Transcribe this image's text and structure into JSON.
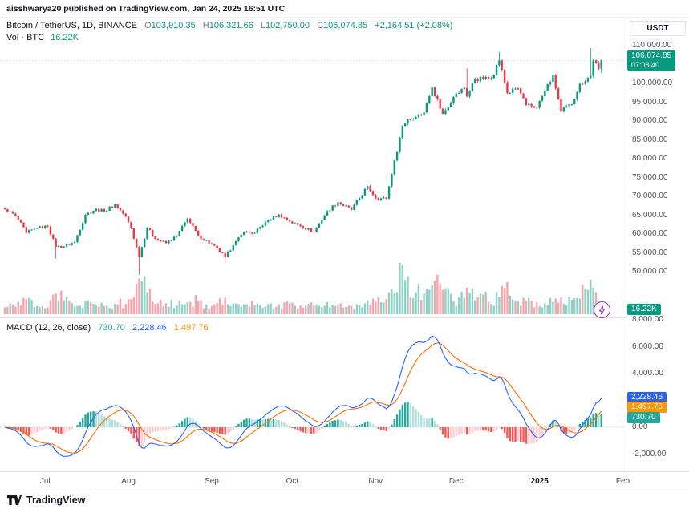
{
  "attribution": "aisshwarya20 published on TradingView.com, Jan 24, 2025 16:51 UTC",
  "legend": {
    "symbol": "Bitcoin / TetherUS, 1D, BINANCE",
    "o_key": "O",
    "o_val": "103,910.35",
    "h_key": "H",
    "h_val": "106,321.66",
    "l_key": "L",
    "l_val": "102,750.00",
    "c_key": "C",
    "c_val": "106,074.85",
    "change": "+2,164.51 (+2.08%)",
    "vol_label": "Vol · BTC",
    "vol_value": "16.22K"
  },
  "macd_legend": {
    "title": "MACD (12, 26, close)",
    "hist": "730.70",
    "macd": "2,228.46",
    "signal": "1,497.76"
  },
  "axis": {
    "currency_button": "USDT",
    "price_labels": [
      {
        "text": "110,000.00",
        "value": 110000
      },
      {
        "text": "100,000.00",
        "value": 100000
      },
      {
        "text": "95,000.00",
        "value": 95000
      },
      {
        "text": "90,000.00",
        "value": 90000
      },
      {
        "text": "85,000.00",
        "value": 85000
      },
      {
        "text": "80,000.00",
        "value": 80000
      },
      {
        "text": "75,000.00",
        "value": 75000
      },
      {
        "text": "70,000.00",
        "value": 70000
      },
      {
        "text": "65,000.00",
        "value": 65000
      },
      {
        "text": "60,000.00",
        "value": 60000
      },
      {
        "text": "55,000.00",
        "value": 55000
      },
      {
        "text": "50,000.00",
        "value": 50000
      }
    ],
    "price_tag": {
      "text": "106,074.85",
      "countdown": "07:08:40",
      "value": 106074.85,
      "color": "#089981",
      "countdown_bg": "#067a67"
    },
    "volume_tag": {
      "text": "16.22K",
      "color": "#089981"
    },
    "macd_labels": [
      {
        "text": "8,000.00",
        "value": 8000
      },
      {
        "text": "6,000.00",
        "value": 6000
      },
      {
        "text": "4,000.00",
        "value": 4000
      },
      {
        "text": "0.00",
        "value": 0
      },
      {
        "text": "-2,000.00",
        "value": -2000
      }
    ],
    "macd_tags": [
      {
        "text": "2,228.46",
        "value": 2228.46,
        "color": "#2962FF"
      },
      {
        "text": "1,497.76",
        "value": 1497.76,
        "color": "#FF9800"
      },
      {
        "text": "730.70",
        "value": 730.7,
        "color": "#26A69A"
      }
    ],
    "time_labels": [
      {
        "text": "Jul",
        "i": 15,
        "bold": false
      },
      {
        "text": "Aug",
        "i": 46,
        "bold": false
      },
      {
        "text": "Sep",
        "i": 77,
        "bold": false
      },
      {
        "text": "Oct",
        "i": 107,
        "bold": false
      },
      {
        "text": "Nov",
        "i": 138,
        "bold": false
      },
      {
        "text": "Dec",
        "i": 168,
        "bold": false
      },
      {
        "text": "2025",
        "i": 199,
        "bold": true
      },
      {
        "text": "Feb",
        "i": 230,
        "bold": false
      }
    ]
  },
  "footer": {
    "brand": "TradingView"
  },
  "icons": {
    "logo": "tradingview-logo",
    "boost": "lightning-bolt-icon"
  },
  "colors": {
    "up": "#089981",
    "down": "#F23645",
    "vol_up": "rgba(8,153,129,0.45)",
    "vol_down": "rgba(242,54,69,0.45)",
    "macd_line": "#2962FF",
    "signal_line": "#FF6D00",
    "hist_pos": "#26A69A",
    "hist_pos_weak": "#B2DFDB",
    "hist_neg": "#FF5252",
    "hist_neg_weak": "#FFCDD2",
    "accent_purple": "#9C27B0",
    "zero_line": "#e8eaee"
  },
  "chart_data": [
    {
      "type": "candlestick",
      "title": "Bitcoin / TetherUS, 1D, BINANCE",
      "ylabel": "Price (USDT)",
      "ylim": [
        48500,
        116000
      ],
      "start_date": "2024-06-16",
      "x_months": [
        "Jul",
        "Aug",
        "Sep",
        "Oct",
        "Nov",
        "Dec",
        "2025",
        "Feb"
      ],
      "last_candle": {
        "o": 103910.35,
        "h": 106321.66,
        "l": 102750.0,
        "c": 106074.85
      },
      "change": "+2,164.51 (+2.08%)",
      "keyframes": [
        {
          "i": 0,
          "c": 66600,
          "v": 12
        },
        {
          "i": 4,
          "c": 64900,
          "v": 13
        },
        {
          "i": 8,
          "c": 60300,
          "v": 26
        },
        {
          "i": 12,
          "c": 61600,
          "v": 14
        },
        {
          "i": 16,
          "c": 62000,
          "v": 12
        },
        {
          "i": 19,
          "c": 56600,
          "v": 36,
          "lo": 53500
        },
        {
          "i": 22,
          "c": 56700,
          "v": 24
        },
        {
          "i": 26,
          "c": 57900,
          "v": 14
        },
        {
          "i": 30,
          "c": 65100,
          "v": 22
        },
        {
          "i": 34,
          "c": 66700,
          "v": 15
        },
        {
          "i": 37,
          "c": 65900,
          "v": 14
        },
        {
          "i": 41,
          "c": 67900,
          "v": 18
        },
        {
          "i": 45,
          "c": 64600,
          "v": 18
        },
        {
          "i": 47,
          "c": 61500,
          "v": 26
        },
        {
          "i": 50,
          "c": 54000,
          "v": 62,
          "lo": 49221
        },
        {
          "i": 53,
          "c": 61700,
          "v": 38
        },
        {
          "i": 56,
          "c": 58700,
          "v": 18
        },
        {
          "i": 60,
          "c": 57560,
          "v": 19
        },
        {
          "i": 64,
          "c": 59500,
          "v": 15
        },
        {
          "i": 68,
          "c": 64100,
          "v": 21
        },
        {
          "i": 72,
          "c": 59500,
          "v": 23
        },
        {
          "i": 77,
          "c": 57300,
          "v": 14
        },
        {
          "i": 82,
          "c": 53950,
          "v": 29,
          "lo": 52550
        },
        {
          "i": 85,
          "c": 57000,
          "v": 19
        },
        {
          "i": 89,
          "c": 60500,
          "v": 17
        },
        {
          "i": 93,
          "c": 60300,
          "v": 16
        },
        {
          "i": 97,
          "c": 63200,
          "v": 13
        },
        {
          "i": 102,
          "c": 65200,
          "v": 17
        },
        {
          "i": 106,
          "c": 63300,
          "v": 19
        },
        {
          "i": 110,
          "c": 62100,
          "v": 15
        },
        {
          "i": 115,
          "c": 60600,
          "v": 15
        },
        {
          "i": 120,
          "c": 66100,
          "v": 21
        },
        {
          "i": 124,
          "c": 68400,
          "v": 17
        },
        {
          "i": 129,
          "c": 66400,
          "v": 14
        },
        {
          "i": 135,
          "c": 72700,
          "v": 24
        },
        {
          "i": 138,
          "c": 69500,
          "v": 22
        },
        {
          "i": 142,
          "c": 69400,
          "v": 26
        },
        {
          "i": 144,
          "c": 75900,
          "v": 44
        },
        {
          "i": 148,
          "c": 88700,
          "v": 86
        },
        {
          "i": 150,
          "c": 90400,
          "v": 66
        },
        {
          "i": 153,
          "c": 91000,
          "v": 38
        },
        {
          "i": 156,
          "c": 92300,
          "v": 36
        },
        {
          "i": 159,
          "c": 98900,
          "v": 50
        },
        {
          "i": 163,
          "c": 91900,
          "v": 42
        },
        {
          "i": 167,
          "c": 96400,
          "v": 22
        },
        {
          "i": 171,
          "c": 98800,
          "v": 28
        },
        {
          "i": 172,
          "c": 96500,
          "v": 46,
          "hi": 104088
        },
        {
          "i": 175,
          "c": 101200,
          "v": 24
        },
        {
          "i": 178,
          "c": 101100,
          "v": 34
        },
        {
          "i": 181,
          "c": 101400,
          "v": 18
        },
        {
          "i": 184,
          "c": 106100,
          "v": 30,
          "hi": 108364
        },
        {
          "i": 187,
          "c": 97400,
          "v": 56
        },
        {
          "i": 191,
          "c": 98700,
          "v": 22
        },
        {
          "i": 194,
          "c": 94200,
          "v": 23
        },
        {
          "i": 198,
          "c": 93500,
          "v": 21
        },
        {
          "i": 201,
          "c": 98100,
          "v": 19
        },
        {
          "i": 204,
          "c": 102100,
          "v": 21
        },
        {
          "i": 207,
          "c": 92500,
          "v": 29
        },
        {
          "i": 211,
          "c": 94500,
          "v": 25
        },
        {
          "i": 214,
          "c": 99900,
          "v": 27
        },
        {
          "i": 218,
          "c": 102000,
          "v": 60,
          "hi": 109358
        },
        {
          "i": 219,
          "c": 106100,
          "v": 46
        },
        {
          "i": 221,
          "c": 103900,
          "v": 22
        },
        {
          "i": 222,
          "c": 106074.85,
          "v": 16.22
        }
      ]
    },
    {
      "type": "bar",
      "name": "Volume",
      "unit": "BTC",
      "current": 16.22,
      "current_label": "16.22K"
    },
    {
      "type": "line",
      "name": "MACD (12, 26, 9)",
      "ylim": [
        -3000,
        8000
      ],
      "current": {
        "macd": 2228.46,
        "signal": 1497.76,
        "histogram": 730.7
      },
      "computed_from": "daily closes of the candlestick series"
    }
  ]
}
